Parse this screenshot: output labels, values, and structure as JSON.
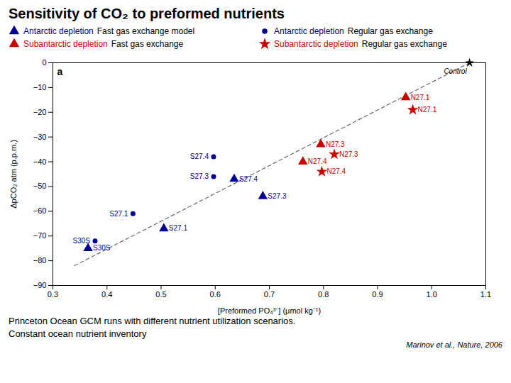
{
  "chart_data": {
    "type": "scatter",
    "title": "Sensitivity of CO₂ to preformed nutrients",
    "xlabel": "[Preformed PO₄³⁻] (μmol kg⁻¹)",
    "ylabel": "ΔpCO₂ atm (p.p.m.)",
    "xlim": [
      0.3,
      1.1
    ],
    "ylim": [
      -90,
      0
    ],
    "xticks": [
      0.3,
      0.4,
      0.5,
      0.6,
      0.7,
      0.8,
      0.9,
      {
        "value": 1.0,
        "label": "1.0"
      },
      1.1
    ],
    "yticks": [
      0,
      {
        "value": -10,
        "label": "−10"
      },
      {
        "value": -20,
        "label": "−20"
      },
      {
        "value": -30,
        "label": "−30"
      },
      {
        "value": -40,
        "label": "−40"
      },
      {
        "value": -50,
        "label": "−50"
      },
      {
        "value": -60,
        "label": "−60"
      },
      {
        "value": -70,
        "label": "−70"
      },
      {
        "value": -80,
        "label": "−80"
      },
      {
        "value": -90,
        "label": "−90"
      }
    ],
    "legend": "top",
    "series": [
      {
        "name": "Antarctic depletion",
        "detail": "Fast gas exchange model",
        "color": "#000099",
        "marker": "triangle",
        "x": [
          0.365,
          0.505,
          0.635,
          0.688
        ],
        "values": [
          -75,
          -67,
          -47,
          -54
        ],
        "labels": [
          "S30S",
          "S27.1",
          "S27.4",
          "S27.3"
        ]
      },
      {
        "name": "Antarctic depletion",
        "detail": "Regular gas exchange",
        "color": "#000099",
        "marker": "circle",
        "x": [
          0.378,
          0.448,
          0.597,
          0.597
        ],
        "values": [
          -72,
          -61,
          -46,
          -38
        ],
        "labels": [
          "S30S",
          "S27.1",
          "S27.3",
          "S27.4"
        ]
      },
      {
        "name": "Subantarctic depletion",
        "detail": "Fast gas exchange",
        "color": "#cc0000",
        "marker": "triangle",
        "x": [
          0.762,
          0.795,
          0.952
        ],
        "values": [
          -40,
          -33,
          -14
        ],
        "labels": [
          "N27.4",
          "N27.3",
          "N27.1"
        ]
      },
      {
        "name": "Subantarctic depletion",
        "detail": "Regular gas exchange",
        "color": "#cc0000",
        "marker": "star",
        "x": [
          0.797,
          0.82,
          0.965
        ],
        "values": [
          -44,
          -37,
          -19
        ],
        "labels": [
          "N27.4",
          "N27.3",
          "N27.1"
        ]
      }
    ],
    "annotations": [
      {
        "type": "line",
        "x": [
          0.34,
          1.07
        ],
        "y": [
          -82,
          0
        ],
        "color": "#666666",
        "line_style": "dashed"
      },
      {
        "type": "point",
        "x": 1.07,
        "y": 0,
        "text": "Control",
        "color": "black",
        "marker": "star"
      }
    ],
    "panel_label": "a",
    "notes": [
      "Princeton Ocean GCM runs with different nutrient utilization scenarios.",
      "Constant ocean nutrient inventory"
    ],
    "source": "Marinov et al., Nature, 2006"
  }
}
